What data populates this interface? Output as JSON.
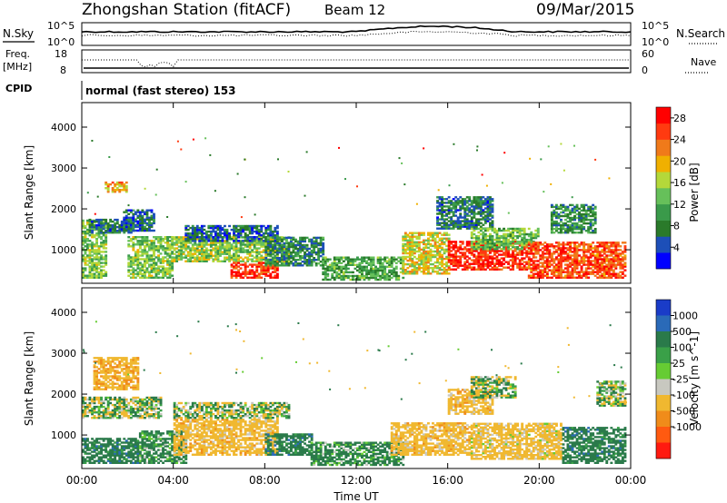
{
  "header": {
    "station": "Zhongshan Station (fitACF)",
    "beam": "Beam 12",
    "date": "09/Mar/2015"
  },
  "summary": {
    "nsky_label": "N.Sky",
    "nsky_ticks": [
      "10^5",
      "10^0"
    ],
    "nsky_ticks_right": [
      "10^5",
      "10^0"
    ],
    "nsearch_label": "N.Search",
    "freq_label": "Freq.",
    "freq_unit": "[MHz]",
    "freq_ticks": [
      "18",
      "8"
    ],
    "nave_ticks": [
      "60",
      "0"
    ],
    "nave_label": "Nave",
    "cpid_label": "CPID",
    "cpid_text": "normal (fast stereo) 153"
  },
  "chart_data": [
    {
      "type": "heatmap",
      "title": "",
      "quantity": "Power",
      "xlabel": "Time UT",
      "ylabel": "Slant Range [km]",
      "x_ticks": [
        "00:00",
        "04:00",
        "08:00",
        "12:00",
        "16:00",
        "20:00",
        "00:00"
      ],
      "x_range_hours": [
        0,
        24
      ],
      "ylim": [
        180,
        4600
      ],
      "y_ticks": [
        1000,
        2000,
        3000,
        4000
      ],
      "colorbar": {
        "label": "Power [dB]",
        "ticks": [
          4,
          8,
          12,
          16,
          20,
          24,
          28
        ],
        "range": [
          0,
          30
        ],
        "colors": [
          "#0000ff",
          "#1d4fb8",
          "#2a7a2a",
          "#3a9a4a",
          "#66c05a",
          "#b4d83a",
          "#f0b000",
          "#f07a1a",
          "#ff3a10",
          "#ff0000"
        ]
      },
      "regions": [
        {
          "t": [
            0.0,
            1.0
          ],
          "r": [
            300,
            1700
          ],
          "level": 14
        },
        {
          "t": [
            0.3,
            2.3
          ],
          "r": [
            1400,
            1750
          ],
          "level": 7
        },
        {
          "t": [
            1.0,
            2.0
          ],
          "r": [
            2400,
            2650
          ],
          "level": 20
        },
        {
          "t": [
            1.8,
            3.2
          ],
          "r": [
            1450,
            1950
          ],
          "level": 6
        },
        {
          "t": [
            2.0,
            4.0
          ],
          "r": [
            300,
            1300
          ],
          "level": 14
        },
        {
          "t": [
            4.0,
            9.0
          ],
          "r": [
            700,
            1300
          ],
          "level": 15
        },
        {
          "t": [
            4.5,
            8.5
          ],
          "r": [
            1200,
            1600
          ],
          "level": 6
        },
        {
          "t": [
            6.5,
            8.5
          ],
          "r": [
            300,
            700
          ],
          "level": 26
        },
        {
          "t": [
            8.0,
            10.5
          ],
          "r": [
            600,
            1300
          ],
          "level": 8
        },
        {
          "t": [
            10.5,
            14.0
          ],
          "r": [
            250,
            800
          ],
          "level": 11
        },
        {
          "t": [
            14.0,
            16.0
          ],
          "r": [
            400,
            1400
          ],
          "level": 18
        },
        {
          "t": [
            15.5,
            18.0
          ],
          "r": [
            1500,
            2300
          ],
          "level": 7
        },
        {
          "t": [
            16.0,
            19.5
          ],
          "r": [
            500,
            1200
          ],
          "level": 27
        },
        {
          "t": [
            17.0,
            20.0
          ],
          "r": [
            1000,
            1500
          ],
          "level": 13
        },
        {
          "t": [
            19.5,
            23.8
          ],
          "r": [
            300,
            1200
          ],
          "level": 25
        },
        {
          "t": [
            20.5,
            22.5
          ],
          "r": [
            1400,
            2100
          ],
          "level": 9
        }
      ]
    },
    {
      "type": "heatmap",
      "title": "",
      "quantity": "Velocity",
      "xlabel": "Time UT",
      "ylabel": "Slant Range [km]",
      "x_ticks": [
        "00:00",
        "04:00",
        "08:00",
        "12:00",
        "16:00",
        "20:00",
        "00:00"
      ],
      "x_range_hours": [
        0,
        24
      ],
      "ylim": [
        180,
        4600
      ],
      "y_ticks": [
        1000,
        2000,
        3000,
        4000
      ],
      "colorbar": {
        "label": "Velocity [m s^-1]",
        "ticks": [
          "1000",
          "500",
          "100",
          "25",
          "-25",
          "-100",
          "-500",
          "-1000"
        ],
        "colors": [
          "#1a3cc8",
          "#2a6ab8",
          "#2a7a4a",
          "#3aa048",
          "#66cc33",
          "#c8c8c0",
          "#f0b830",
          "#f08c1a",
          "#ff5a10",
          "#ff1a10"
        ]
      },
      "regions": [
        {
          "t": [
            0.0,
            2.5
          ],
          "r": [
            300,
            900
          ],
          "v": 300
        },
        {
          "t": [
            0.0,
            3.5
          ],
          "r": [
            1400,
            1900
          ],
          "v": 0
        },
        {
          "t": [
            0.5,
            2.5
          ],
          "r": [
            2100,
            2900
          ],
          "v": -400
        },
        {
          "t": [
            2.5,
            4.5
          ],
          "r": [
            300,
            1100
          ],
          "v": 200
        },
        {
          "t": [
            4.0,
            8.5
          ],
          "r": [
            500,
            1400
          ],
          "v": -300
        },
        {
          "t": [
            4.0,
            9.0
          ],
          "r": [
            1400,
            1800
          ],
          "v": 0
        },
        {
          "t": [
            8.0,
            10.0
          ],
          "r": [
            500,
            1000
          ],
          "v": 300
        },
        {
          "t": [
            10.0,
            14.0
          ],
          "r": [
            250,
            800
          ],
          "v": 200
        },
        {
          "t": [
            13.5,
            17.0
          ],
          "r": [
            500,
            1300
          ],
          "v": -300
        },
        {
          "t": [
            16.0,
            18.0
          ],
          "r": [
            1500,
            2100
          ],
          "v": -300
        },
        {
          "t": [
            17.0,
            19.0
          ],
          "r": [
            1900,
            2400
          ],
          "v": 0
        },
        {
          "t": [
            17.0,
            21.0
          ],
          "r": [
            400,
            1300
          ],
          "v": -250
        },
        {
          "t": [
            21.0,
            23.8
          ],
          "r": [
            300,
            1200
          ],
          "v": 300
        },
        {
          "t": [
            22.5,
            23.8
          ],
          "r": [
            1700,
            2300
          ],
          "v": 0
        }
      ]
    }
  ]
}
